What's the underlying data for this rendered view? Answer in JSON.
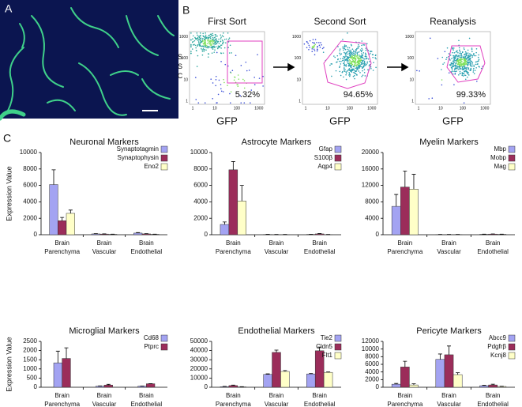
{
  "panel_labels": [
    "A",
    "B",
    "C"
  ],
  "flow_panels": [
    {
      "title": "First Sort",
      "gate_label": "5.32%"
    },
    {
      "title": "Second Sort",
      "gate_label": "94.65%"
    },
    {
      "title": "Reanalysis",
      "gate_label": "99.33%"
    }
  ],
  "flow_xlabel": "GFP",
  "flow_ylabel": "SSC",
  "flow_ticks": [
    1,
    10,
    100,
    1000
  ],
  "chart_data": [
    {
      "type": "bar",
      "title": "Neuronal Markers",
      "ylabel": "Expression Value",
      "categories": [
        "Brain Parenchyma",
        "Brain Vascular",
        "Brain Endothelial"
      ],
      "ylim": [
        0,
        10000
      ],
      "yticks": [
        0,
        2000,
        4000,
        6000,
        8000,
        10000
      ],
      "legend": "upper right",
      "series": [
        {
          "name": "Synaptotagmin",
          "color": "#a3a3f2",
          "values": [
            6100,
            100,
            200
          ],
          "errors": [
            1800,
            30,
            60
          ]
        },
        {
          "name": "Synaptophysin",
          "color": "#9b2d5a",
          "values": [
            1700,
            80,
            100
          ],
          "errors": [
            400,
            20,
            30
          ]
        },
        {
          "name": "Eno2",
          "color": "#ffffc8",
          "values": [
            2600,
            50,
            50
          ],
          "errors": [
            400,
            20,
            20
          ]
        }
      ]
    },
    {
      "type": "bar",
      "title": "Astrocyte Markers",
      "categories": [
        "Brain Parenchyma",
        "Brain Vascular",
        "Brain Endothelial"
      ],
      "ylim": [
        0,
        10000
      ],
      "yticks": [
        0,
        2000,
        4000,
        6000,
        8000,
        10000
      ],
      "legend": "upper right",
      "series": [
        {
          "name": "Gfap",
          "color": "#a3a3f2",
          "values": [
            1250,
            30,
            40
          ],
          "errors": [
            300,
            10,
            10
          ]
        },
        {
          "name": "S100β",
          "color": "#9b2d5a",
          "values": [
            7900,
            20,
            100
          ],
          "errors": [
            1000,
            10,
            40
          ]
        },
        {
          "name": "Aqp4",
          "color": "#ffffc8",
          "values": [
            4100,
            20,
            20
          ],
          "errors": [
            1900,
            10,
            10
          ]
        }
      ]
    },
    {
      "type": "bar",
      "title": "Myelin Markers",
      "categories": [
        "Brain Parenchyma",
        "Brain Vascular",
        "Brain Endothelial"
      ],
      "ylim": [
        0,
        20000
      ],
      "yticks": [
        0,
        4000,
        8000,
        12000,
        16000,
        20000
      ],
      "legend": "upper right",
      "series": [
        {
          "name": "Mbp",
          "color": "#a3a3f2",
          "values": [
            6900,
            50,
            100
          ],
          "errors": [
            2900,
            20,
            30
          ]
        },
        {
          "name": "Mobp",
          "color": "#9b2d5a",
          "values": [
            11600,
            50,
            150
          ],
          "errors": [
            3900,
            20,
            40
          ]
        },
        {
          "name": "Mag",
          "color": "#ffffc8",
          "values": [
            11100,
            50,
            100
          ],
          "errors": [
            3600,
            20,
            30
          ]
        }
      ]
    },
    {
      "type": "bar",
      "title": "Microglial Markers",
      "ylabel": "Expression Value",
      "categories": [
        "Brain Parenchyma",
        "Brain Vascular",
        "Brain Endothelial"
      ],
      "ylim": [
        0,
        2500
      ],
      "yticks": [
        0,
        500,
        1000,
        1500,
        2000,
        2500
      ],
      "legend": "upper right",
      "series": [
        {
          "name": "Cd68",
          "color": "#a3a3f2",
          "values": [
            1330,
            60,
            60
          ],
          "errors": [
            640,
            15,
            10
          ]
        },
        {
          "name": "Ptprc",
          "color": "#9b2d5a",
          "values": [
            1570,
            120,
            190
          ],
          "errors": [
            580,
            40,
            10
          ]
        }
      ]
    },
    {
      "type": "bar",
      "title": "Endothelial Markers",
      "categories": [
        "Brain Parenchyma",
        "Brain Vascular",
        "Brain Endothelial"
      ],
      "ylim": [
        0,
        50000
      ],
      "yticks": [
        0,
        10000,
        20000,
        30000,
        40000,
        50000
      ],
      "legend": "upper right",
      "series": [
        {
          "name": "Tie2",
          "color": "#a3a3f2",
          "values": [
            600,
            14000,
            14500
          ],
          "errors": [
            300,
            600,
            500
          ]
        },
        {
          "name": "Cldn5",
          "color": "#9b2d5a",
          "values": [
            1800,
            38000,
            39800
          ],
          "errors": [
            600,
            2500,
            4000
          ]
        },
        {
          "name": "Flt1",
          "color": "#ffffc8",
          "values": [
            400,
            17200,
            16200
          ],
          "errors": [
            200,
            1000,
            500
          ]
        }
      ]
    },
    {
      "type": "bar",
      "title": "Pericyte Markers",
      "categories": [
        "Brain Parenchyma",
        "Brain Vascular",
        "Brain Endothelial"
      ],
      "ylim": [
        0,
        12000
      ],
      "yticks": [
        0,
        2000,
        4000,
        6000,
        8000,
        10000,
        12000
      ],
      "legend": "upper right",
      "series": [
        {
          "name": "Abcc9",
          "color": "#a3a3f2",
          "values": [
            800,
            7300,
            400
          ],
          "errors": [
            200,
            1400,
            100
          ]
        },
        {
          "name": "Pdgfrβ",
          "color": "#9b2d5a",
          "values": [
            5300,
            8500,
            600
          ],
          "errors": [
            1500,
            2300,
            200
          ]
        },
        {
          "name": "Kcnj8",
          "color": "#ffffc8",
          "values": [
            600,
            3300,
            200
          ],
          "errors": [
            300,
            500,
            50
          ]
        }
      ]
    }
  ]
}
